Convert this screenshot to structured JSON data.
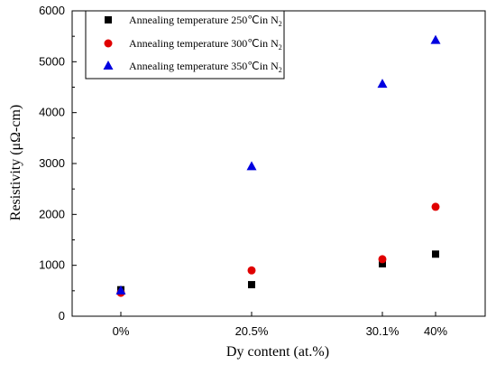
{
  "chart_data": {
    "type": "scatter",
    "categories": [
      "0%",
      "20.5%",
      "30.1%",
      "40%"
    ],
    "xlabel": "Dy content (at.%)",
    "ylabel": "Resistivity (μΩ-cm)",
    "ylim": [
      0,
      6000
    ],
    "yticks": [
      0,
      1000,
      2000,
      3000,
      4000,
      5000,
      6000
    ],
    "grid": false,
    "legend": "top-left",
    "series": [
      {
        "name": "Annealing temperature 250℃in N",
        "subscript": "2",
        "marker": "square",
        "color": "#000000",
        "values": [
          520,
          620,
          1030,
          1220
        ]
      },
      {
        "name": "Annealing temperature 300℃in N",
        "subscript": "2",
        "marker": "circle",
        "color": "#e00000",
        "values": [
          460,
          900,
          1120,
          2150
        ]
      },
      {
        "name": "Annealing temperature 350℃in N",
        "subscript": "2",
        "marker": "triangle",
        "color": "#0000e0",
        "values": [
          500,
          2940,
          4560,
          5420
        ]
      }
    ]
  }
}
